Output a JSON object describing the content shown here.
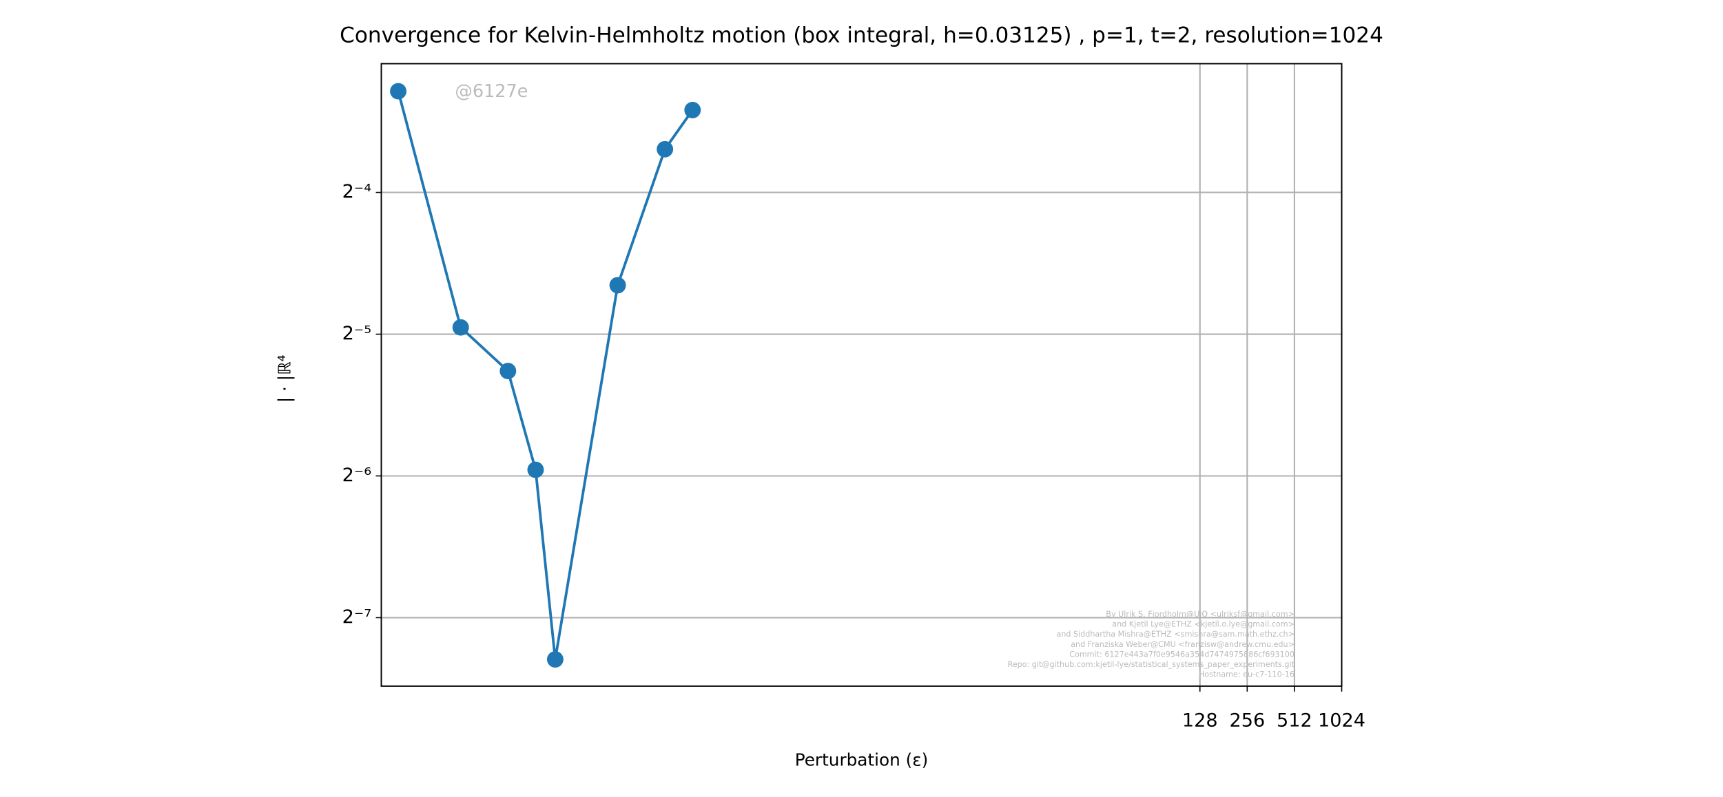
{
  "chart_data": {
    "type": "line",
    "title": "Convergence for Kelvin-Helmholtz motion (box integral, h=0.03125) , p=1, t=2, resolution=1024",
    "xlabel": "Perturbation (ε)",
    "ylabel": "| · |ℝ⁴",
    "x": [
      0.001,
      0.0025,
      0.005,
      0.0075,
      0.01,
      0.025,
      0.05,
      0.075
    ],
    "series": [
      {
        "color": "#1f77b4",
        "values": [
          0.1025,
          0.0323,
          0.0261,
          0.0161,
          0.00637,
          0.0397,
          0.0772,
          0.0935
        ]
      }
    ],
    "xscale": "log",
    "yscale": "log",
    "xlim": [
      0.00078,
      1024
    ],
    "ylim": [
      0.00559,
      0.1173
    ],
    "xticks": [
      128,
      256,
      512,
      1024
    ],
    "yticks": [
      {
        "value": 0.0625,
        "label": "2⁻⁴"
      },
      {
        "value": 0.03125,
        "label": "2⁻⁵"
      },
      {
        "value": 0.015625,
        "label": "2⁻⁶"
      },
      {
        "value": 0.0078125,
        "label": "2⁻⁷"
      }
    ],
    "grid": true,
    "watermark": "@6127e",
    "credits": [
      "By Ulrik S. Fjordholm@UiO <ulriksf@gmail.com>",
      "and Kjetil Lye@ETHZ <kjetil.o.lye@gmail.com>",
      "and Siddhartha Mishra@ETHZ <smishra@sam.math.ethz.ch>",
      "and Franziska Weber@CMU <franzisw@andrew.cmu.edu>",
      "Commit: 6127e443a7f0e9546a354d7474975886cf693100",
      "Repo: git@github.com:kjetil-lye/statistical_systems_paper_experiments.git",
      "Hostname: eu-c7-110-16"
    ]
  }
}
